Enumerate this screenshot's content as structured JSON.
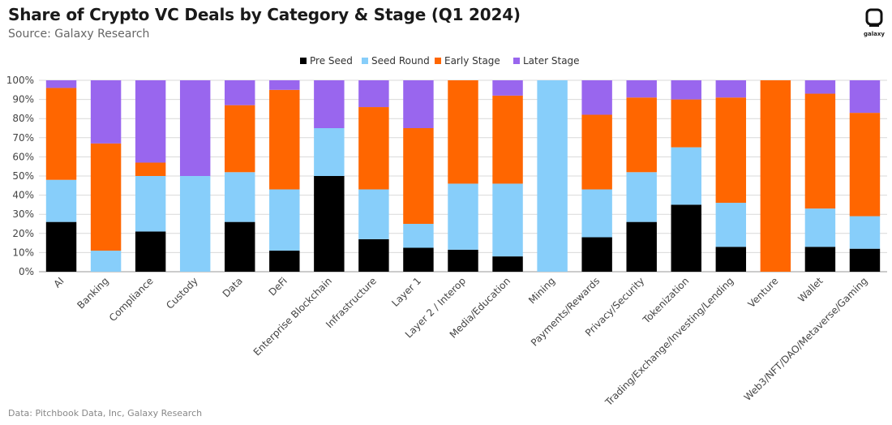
{
  "header": {
    "title": "Share of Crypto VC Deals by Category & Stage (Q1 2024)",
    "subtitle": "Source: Galaxy Research",
    "logo_text": "galaxy"
  },
  "footer": {
    "text": "Data: Pitchbook Data, Inc, Galaxy Research"
  },
  "colors": {
    "pre_seed": "#000000",
    "seed": "#87cefa",
    "early": "#ff6600",
    "later": "#9966ee",
    "grid": "#d9d9d9"
  },
  "chart_data": {
    "type": "bar",
    "stacked": true,
    "title": "Share of Crypto VC Deals by Category & Stage (Q1 2024)",
    "ylim": [
      0,
      100
    ],
    "y_ticks": [
      "0%",
      "10%",
      "20%",
      "30%",
      "40%",
      "50%",
      "60%",
      "70%",
      "80%",
      "90%",
      "100%"
    ],
    "legend_position": "top-center",
    "grid": "horizontal",
    "categories": [
      "AI",
      "Banking",
      "Compliance",
      "Custody",
      "Data",
      "DeFi",
      "Enterprise Blockchain",
      "Infrastructure",
      "Layer 1",
      "Layer 2 / Interop",
      "Media/Education",
      "Mining",
      "Payments/Rewards",
      "Privacy/Security",
      "Tokenization",
      "Trading/Exchange/Investing/Lending",
      "Venture",
      "Wallet",
      "Web3/NFT/DAO/Metaverse/Gaming"
    ],
    "series": [
      {
        "name": "Pre Seed",
        "values": [
          26,
          0,
          21,
          0,
          26,
          11,
          50,
          17,
          12.5,
          11.5,
          8,
          0,
          18,
          26,
          35,
          13,
          0,
          13,
          12
        ]
      },
      {
        "name": "Seed Round",
        "values": [
          22,
          11,
          29,
          50,
          26,
          32,
          25,
          26,
          12.5,
          34.5,
          38,
          100,
          25,
          26,
          30,
          23,
          0,
          20,
          17
        ]
      },
      {
        "name": "Early Stage",
        "values": [
          48,
          56,
          7,
          0,
          35,
          52,
          0,
          43,
          50,
          54,
          46,
          0,
          39,
          39,
          25,
          55,
          100,
          60,
          54
        ]
      },
      {
        "name": "Later Stage",
        "values": [
          4,
          33,
          43,
          50,
          13,
          5,
          25,
          14,
          25,
          0,
          8,
          0,
          18,
          9,
          10,
          9,
          0,
          7,
          17
        ]
      }
    ]
  }
}
